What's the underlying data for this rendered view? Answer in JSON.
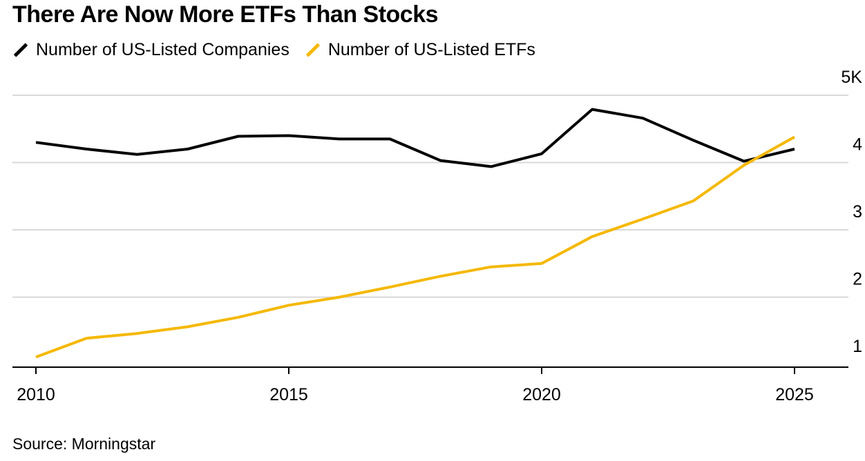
{
  "title": "There Are Now More ETFs Than Stocks",
  "source": "Source: Morningstar",
  "chart_data": {
    "type": "line",
    "title": "There Are Now More ETFs Than Stocks",
    "x": [
      2010,
      2011,
      2012,
      2013,
      2014,
      2015,
      2016,
      2017,
      2018,
      2019,
      2020,
      2021,
      2022,
      2023,
      2024,
      2025
    ],
    "series": [
      {
        "name": "Number of US-Listed Companies",
        "color": "#000000",
        "values": [
          4.3,
          4.2,
          4.12,
          4.2,
          4.39,
          4.4,
          4.35,
          4.35,
          4.03,
          3.94,
          4.13,
          4.79,
          4.66,
          4.33,
          4.02,
          4.2
        ]
      },
      {
        "name": "Number of US-Listed ETFs",
        "color": "#f5b800",
        "values": [
          1.11,
          1.39,
          1.46,
          1.56,
          1.7,
          1.88,
          2.0,
          2.15,
          2.31,
          2.45,
          2.5,
          2.9,
          3.16,
          3.43,
          3.96,
          4.38
        ]
      }
    ],
    "ytick_labels": [
      "1",
      "2",
      "3",
      "4",
      "5K"
    ],
    "yticks": [
      1,
      2,
      3,
      4,
      5
    ],
    "xtick_labels": [
      "2010",
      "2015",
      "2020",
      "2025"
    ],
    "xticks": [
      2010,
      2015,
      2020,
      2025
    ],
    "ylim": [
      0.96,
      5
    ],
    "xlim": [
      2010,
      2026
    ],
    "grid": true,
    "legend": "top-left",
    "xlabel": "",
    "ylabel": ""
  }
}
